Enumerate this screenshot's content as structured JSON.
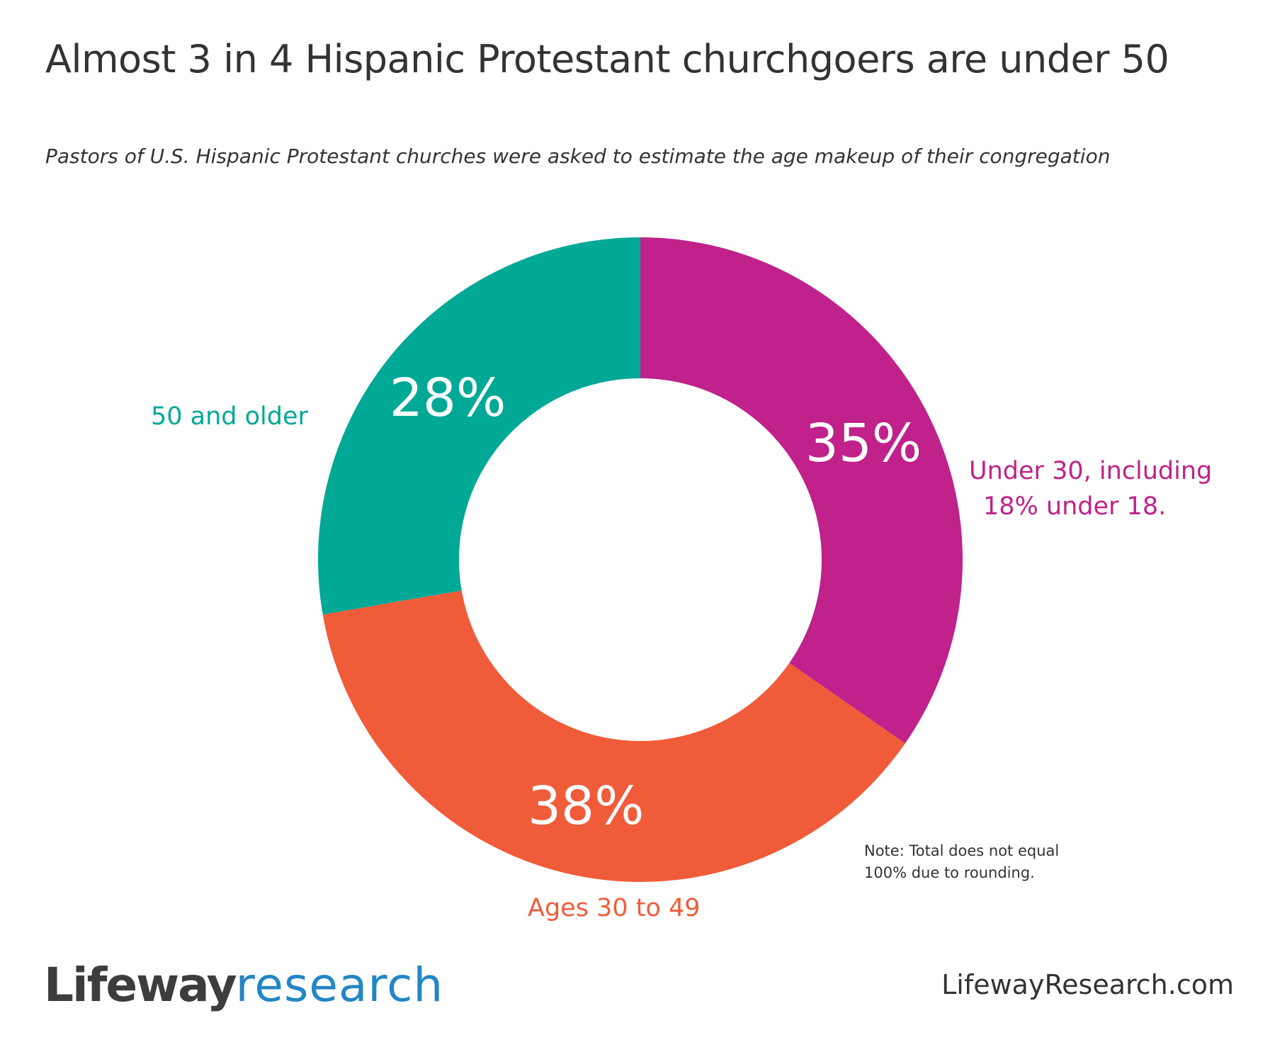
{
  "title": "Almost 3 in 4 Hispanic Protestant churchgoers are under 50",
  "subtitle": "Pastors of U.S. Hispanic Protestant churches were asked to estimate the age makeup of their congregation",
  "chart_data": {
    "type": "pie",
    "donut": true,
    "start": "top, clockwise",
    "slices": [
      {
        "label_lines": [
          "Under 30, including",
          "18% under 18."
        ],
        "value": 35,
        "display": "35%",
        "color": "#C0218A"
      },
      {
        "label_lines": [
          "Ages 30 to 49"
        ],
        "value": 38,
        "display": "38%",
        "color": "#F05C3A"
      },
      {
        "label_lines": [
          "50 and older"
        ],
        "value": 28,
        "display": "28%",
        "color": "#00A896"
      }
    ]
  },
  "note": [
    "Note: Total does not equal",
    "100% due to rounding."
  ],
  "footer": {
    "logo_part1": "Lifeway",
    "logo_part2": "research",
    "url": "LifewayResearch.com"
  }
}
